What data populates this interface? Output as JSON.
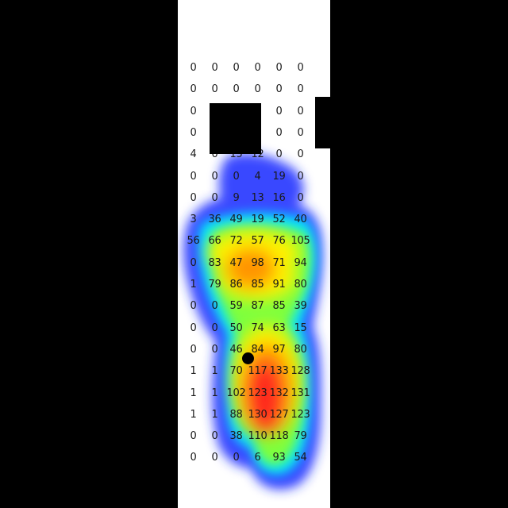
{
  "pressure_map": {
    "rows": [
      [
        0,
        0,
        0,
        0,
        0,
        0
      ],
      [
        0,
        0,
        0,
        0,
        0,
        0
      ],
      [
        0,
        null,
        null,
        null,
        0,
        0
      ],
      [
        0,
        null,
        null,
        null,
        0,
        0
      ],
      [
        4,
        0,
        15,
        12,
        0,
        0
      ],
      [
        0,
        0,
        0,
        4,
        19,
        0
      ],
      [
        0,
        0,
        9,
        13,
        16,
        0
      ],
      [
        3,
        36,
        49,
        19,
        52,
        40
      ],
      [
        56,
        66,
        72,
        57,
        76,
        105
      ],
      [
        0,
        83,
        47,
        98,
        71,
        94
      ],
      [
        1,
        79,
        86,
        85,
        91,
        80
      ],
      [
        0,
        0,
        59,
        87,
        85,
        39
      ],
      [
        0,
        0,
        50,
        74,
        63,
        15
      ],
      [
        0,
        0,
        46,
        84,
        97,
        80
      ],
      [
        1,
        1,
        70,
        117,
        133,
        128
      ],
      [
        1,
        1,
        102,
        123,
        132,
        131
      ],
      [
        1,
        1,
        88,
        130,
        127,
        123
      ],
      [
        0,
        0,
        38,
        110,
        118,
        79
      ],
      [
        0,
        0,
        0,
        6,
        93,
        54
      ]
    ],
    "colormap": [
      "#2233ff",
      "#00e5ff",
      "#7dff3c",
      "#fff200",
      "#ff9500",
      "#ff2a1a"
    ],
    "background_color": "#ffffff",
    "mask_color": "#000000"
  }
}
